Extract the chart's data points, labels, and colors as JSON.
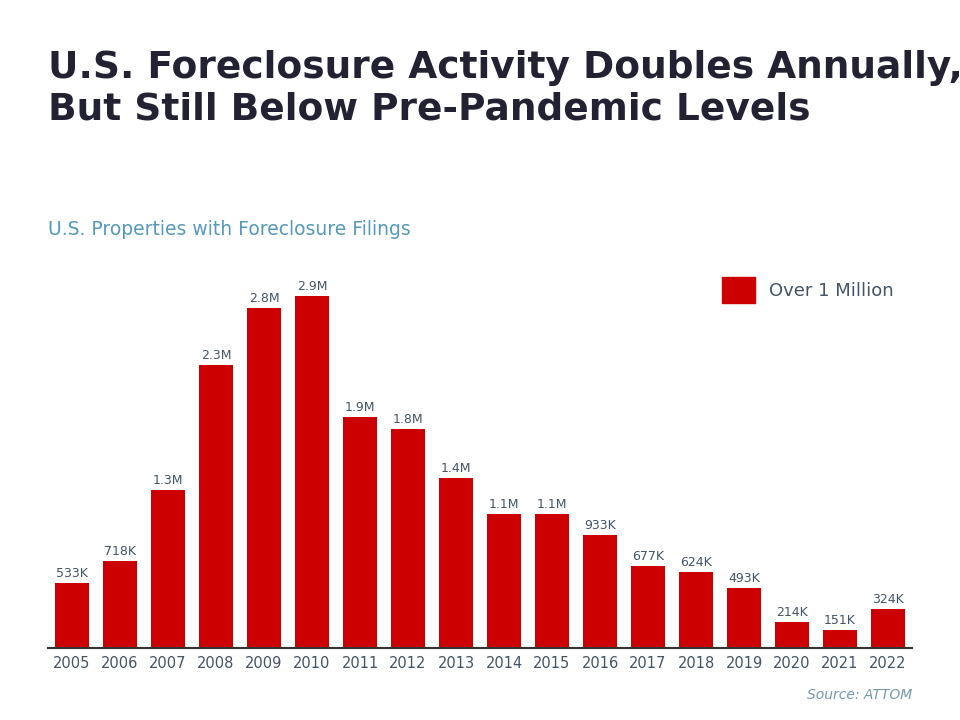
{
  "title_line1": "U.S. Foreclosure Activity Doubles Annually,",
  "title_line2": "But Still Below Pre-Pandemic Levels",
  "subtitle": "U.S. Properties with Foreclosure Filings",
  "source": "Source: ATTOM",
  "years": [
    2005,
    2006,
    2007,
    2008,
    2009,
    2010,
    2011,
    2012,
    2013,
    2014,
    2015,
    2016,
    2017,
    2018,
    2019,
    2020,
    2021,
    2022
  ],
  "values": [
    533000,
    718000,
    1300000,
    2330000,
    2800000,
    2900000,
    1900000,
    1800000,
    1400000,
    1100000,
    1100000,
    933000,
    677000,
    624000,
    493000,
    214000,
    151000,
    324000
  ],
  "labels": [
    "533K",
    "718K",
    "1.3M",
    "2.3M",
    "2.8M",
    "2.9M",
    "1.9M",
    "1.8M",
    "1.4M",
    "1.1M",
    "1.1M",
    "933K",
    "677K",
    "624K",
    "493K",
    "214K",
    "151K",
    "324K"
  ],
  "bar_color": "#cc0000",
  "legend_label": "Over 1 Million",
  "legend_color": "#cc0000",
  "title_color": "#222233",
  "subtitle_color": "#5599bb",
  "source_color": "#7799aa",
  "tick_color": "#445566",
  "top_bar_color": "#22aacc",
  "bg_color": "#ffffff",
  "ylim": [
    0,
    3200000
  ],
  "label_color": "#445566"
}
